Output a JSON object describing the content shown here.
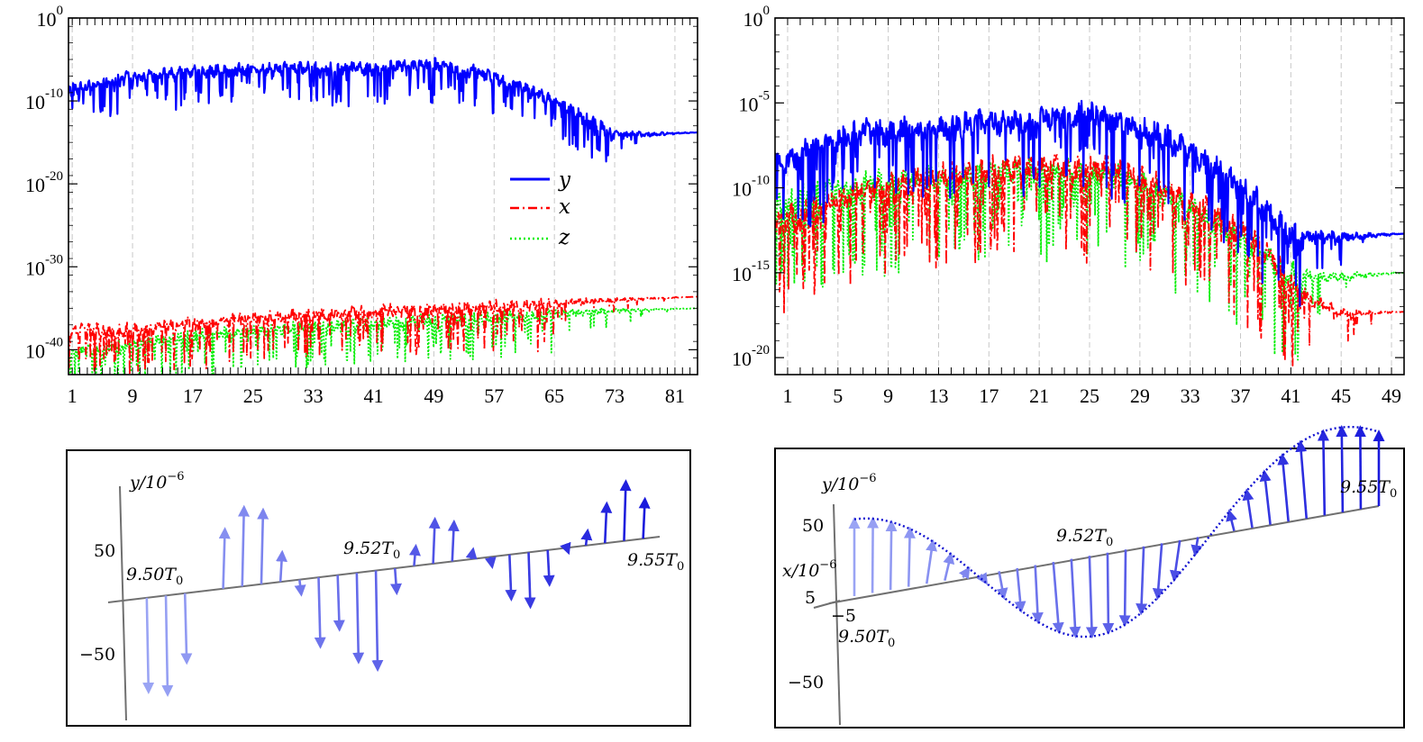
{
  "colors": {
    "y_series": "#0000ff",
    "x_series": "#ff0000",
    "z_series": "#00ee00",
    "arrow_light": "#9aa4f4",
    "arrow_dark": "#1a1adc",
    "axis": "#707070",
    "envelope": "#1010d0"
  },
  "chart_data": [
    {
      "type": "line",
      "panel": "top-left",
      "yscale": "log",
      "ylim": [
        1e-43,
        1
      ],
      "y_tick_labels": [
        "10^0",
        "10^-10",
        "10^-20",
        "10^-30",
        "10^-40"
      ],
      "x_tick_labels": [
        "1",
        "9",
        "17",
        "25",
        "33",
        "41",
        "49",
        "57",
        "65",
        "73",
        "81"
      ],
      "xlim": [
        0.5,
        84
      ],
      "legend_position": "middle-right",
      "series": [
        {
          "name": "y",
          "style": "solid",
          "log10_envelope": {
            "x": [
              1,
              9,
              17,
              25,
              33,
              41,
              49,
              55,
              60,
              65,
              70,
              73,
              76,
              84
            ],
            "y": [
              -8,
              -6.5,
              -6,
              -5.5,
              -5.5,
              -5.5,
              -5,
              -6,
              -7.5,
              -9.5,
              -12,
              -13.5,
              -13.8,
              -13.8
            ]
          }
        },
        {
          "name": "x",
          "style": "dash-dot",
          "log10_envelope": {
            "x": [
              1,
              9,
              17,
              25,
              33,
              41,
              49,
              57,
              65,
              73,
              84
            ],
            "y": [
              -37,
              -37,
              -36.2,
              -35.6,
              -35.2,
              -34.8,
              -34.5,
              -34.2,
              -34.0,
              -33.8,
              -33.6
            ]
          }
        },
        {
          "name": "z",
          "style": "dotted",
          "log10_envelope": {
            "x": [
              1,
              9,
              17,
              25,
              33,
              41,
              49,
              57,
              65,
              73,
              84
            ],
            "y": [
              -39.8,
              -38.8,
              -37.8,
              -37.2,
              -36.7,
              -36.2,
              -35.9,
              -35.6,
              -35.3,
              -35.1,
              -35.0
            ]
          }
        }
      ]
    },
    {
      "type": "line",
      "panel": "top-right",
      "yscale": "log",
      "ylim": [
        1e-21,
        1
      ],
      "y_tick_labels": [
        "10^0",
        "10^-5",
        "10^-10",
        "10^-15",
        "10^-20"
      ],
      "x_tick_labels": [
        "1",
        "5",
        "9",
        "13",
        "17",
        "21",
        "25",
        "29",
        "33",
        "37",
        "41",
        "45",
        "49"
      ],
      "xlim": [
        0,
        50
      ],
      "series": [
        {
          "name": "y",
          "style": "solid",
          "log10_envelope": {
            "x": [
              0.5,
              3,
              7,
              11,
              15,
              19,
              23,
              25,
              27,
              31,
              35,
              38,
              40,
              41,
              42,
              45,
              50
            ],
            "y": [
              -8,
              -7,
              -6.2,
              -6,
              -5.7,
              -5.5,
              -5.2,
              -5,
              -5.5,
              -6.5,
              -8.2,
              -10,
              -11.5,
              -12.2,
              -12.5,
              -12.7,
              -12.7
            ]
          }
        },
        {
          "name": "x",
          "style": "dash-dot",
          "log10_envelope": {
            "x": [
              0.5,
              3,
              7,
              11,
              15,
              19,
              23,
              27,
              31,
              35,
              38,
              40,
              42,
              45,
              50
            ],
            "y": [
              -11.5,
              -10.5,
              -9.5,
              -9,
              -8.5,
              -8.2,
              -8.2,
              -8.2,
              -9.5,
              -11,
              -12.5,
              -14,
              -16,
              -17.2,
              -17.3
            ]
          }
        },
        {
          "name": "z",
          "style": "dotted",
          "log10_envelope": {
            "x": [
              0.5,
              3,
              7,
              11,
              15,
              19,
              23,
              27,
              31,
              35,
              38,
              40,
              42,
              45,
              50
            ],
            "y": [
              -10.5,
              -9.8,
              -9.2,
              -9,
              -8.7,
              -8.5,
              -8.5,
              -8.7,
              -9.8,
              -11.5,
              -12.8,
              -14,
              -14.8,
              -15,
              -15
            ]
          }
        }
      ]
    },
    {
      "type": "scatter",
      "panel": "bottom-left",
      "description": "arrows along time axis from 9.50T0 to 9.55T0",
      "y_axis_label": "y/10^{-6}",
      "y_tick_labels": [
        "50",
        "−50"
      ],
      "annotations": [
        "9.50T_0",
        "9.52T_0",
        "9.55T_0"
      ],
      "values_y_1e-6": [
        -95,
        -100,
        -70,
        0,
        60,
        80,
        75,
        30,
        -15,
        -70,
        -55,
        -90,
        -100,
        -25,
        20,
        45,
        40,
        10,
        -10,
        -45,
        -55,
        -35,
        -5,
        15,
        40,
        60,
        40
      ]
    },
    {
      "type": "scatter",
      "panel": "bottom-right",
      "description": "arrows tracing sinusoidal envelope in 3D view",
      "y_axis_label": "y/10^{-6}",
      "x_axis_label": "x/10^{-6}",
      "y_tick_labels": [
        "50",
        "5",
        "−5",
        "−50"
      ],
      "annotations": [
        "9.50T_0",
        "9.52T_0",
        "9.55T_0"
      ]
    }
  ],
  "legend": [
    {
      "label": "y",
      "style": "solid"
    },
    {
      "label": "x",
      "style": "dash-dot"
    },
    {
      "label": "z",
      "style": "dotted"
    }
  ],
  "texts": {
    "bl_ylabel_main": "y/10",
    "bl_ylabel_exp": "−6",
    "bl_tick_50": "50",
    "bl_tick_m50": "−50",
    "bl_t1_base": "9.50T",
    "bl_t1_sub": "0",
    "bl_t2_base": "9.52T",
    "bl_t2_sub": "0",
    "bl_t3_base": "9.55T",
    "bl_t3_sub": "0",
    "br_ylabel_main": "y/10",
    "br_ylabel_exp": "−6",
    "br_xlabel_main": "x/10",
    "br_xlabel_exp": "−6",
    "br_tick_50": "50",
    "br_tick_5": "5",
    "br_tick_m5": "−5",
    "br_tick_m50": "−50",
    "br_t1_base": "9.50T",
    "br_t1_sub": "0",
    "br_t2_base": "9.52T",
    "br_t2_sub": "0",
    "br_t3_base": "9.55T",
    "br_t3_sub": "0"
  }
}
